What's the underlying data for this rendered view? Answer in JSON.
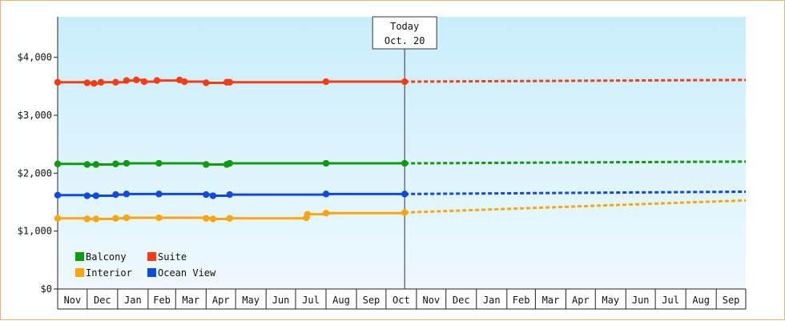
{
  "chart_data": {
    "type": "line",
    "title": "",
    "xlabel": "",
    "ylabel": "",
    "ylim": [
      0,
      4700
    ],
    "y_ticks": [
      {
        "value": 0,
        "label": "$0"
      },
      {
        "value": 1000,
        "label": "$1,000"
      },
      {
        "value": 2000,
        "label": "$2,000"
      },
      {
        "value": 3000,
        "label": "$3,000"
      },
      {
        "value": 4000,
        "label": "$4,000"
      }
    ],
    "x_axis": {
      "months": [
        "Nov",
        "Dec",
        "Jan",
        "Feb",
        "Mar",
        "Apr",
        "May",
        "Jun",
        "Jul",
        "Aug",
        "Sep",
        "Oct",
        "Nov",
        "Dec",
        "Jan",
        "Feb",
        "Mar",
        "Apr",
        "May",
        "Jun",
        "Jul",
        "Aug",
        "Sep"
      ],
      "start": "2014-11-01",
      "end": "2016-10-01"
    },
    "background_gradient": [
      "#c9eefb",
      "#eef9fe"
    ],
    "today": {
      "line1": "Today",
      "line2": "Oct. 20",
      "date": "2015-10-20"
    },
    "legend": {
      "placement": "bottom-left"
    },
    "series": [
      {
        "name": "Suite",
        "color": "#ff3a12",
        "history": [
          [
            "2014-11-01",
            3570
          ],
          [
            "2014-12-01",
            3560
          ],
          [
            "2014-12-08",
            3550
          ],
          [
            "2014-12-15",
            3570
          ],
          [
            "2014-12-30",
            3570
          ],
          [
            "2015-01-10",
            3600
          ],
          [
            "2015-01-20",
            3610
          ],
          [
            "2015-01-28",
            3580
          ],
          [
            "2015-02-10",
            3600
          ],
          [
            "2015-03-05",
            3610
          ],
          [
            "2015-03-10",
            3580
          ],
          [
            "2015-04-01",
            3560
          ],
          [
            "2015-04-22",
            3570
          ],
          [
            "2015-04-25",
            3570
          ],
          [
            "2015-08-01",
            3580
          ],
          [
            "2015-10-20",
            3580
          ]
        ],
        "forecast": [
          [
            "2015-10-20",
            3580
          ],
          [
            "2016-10-01",
            3610
          ]
        ]
      },
      {
        "name": "Balcony",
        "color": "#0e9b0e",
        "history": [
          [
            "2014-11-01",
            2160
          ],
          [
            "2014-12-01",
            2150
          ],
          [
            "2014-12-10",
            2150
          ],
          [
            "2014-12-30",
            2160
          ],
          [
            "2015-01-10",
            2170
          ],
          [
            "2015-02-12",
            2170
          ],
          [
            "2015-04-01",
            2150
          ],
          [
            "2015-04-22",
            2150
          ],
          [
            "2015-04-25",
            2170
          ],
          [
            "2015-08-01",
            2170
          ],
          [
            "2015-10-20",
            2170
          ]
        ],
        "forecast": [
          [
            "2015-10-20",
            2170
          ],
          [
            "2016-10-01",
            2200
          ]
        ]
      },
      {
        "name": "Ocean View",
        "color": "#1148e8",
        "history": [
          [
            "2014-11-01",
            1620
          ],
          [
            "2014-12-01",
            1610
          ],
          [
            "2014-12-10",
            1610
          ],
          [
            "2014-12-30",
            1630
          ],
          [
            "2015-01-10",
            1640
          ],
          [
            "2015-02-12",
            1640
          ],
          [
            "2015-04-01",
            1630
          ],
          [
            "2015-04-08",
            1610
          ],
          [
            "2015-04-25",
            1630
          ],
          [
            "2015-08-01",
            1640
          ],
          [
            "2015-10-20",
            1640
          ]
        ],
        "forecast": [
          [
            "2015-10-20",
            1640
          ],
          [
            "2016-10-01",
            1680
          ]
        ]
      },
      {
        "name": "Interior",
        "color": "#ffa40a",
        "history": [
          [
            "2014-11-01",
            1220
          ],
          [
            "2014-12-01",
            1210
          ],
          [
            "2014-12-10",
            1210
          ],
          [
            "2014-12-30",
            1220
          ],
          [
            "2015-01-10",
            1230
          ],
          [
            "2015-02-12",
            1230
          ],
          [
            "2015-04-01",
            1220
          ],
          [
            "2015-04-08",
            1210
          ],
          [
            "2015-04-25",
            1220
          ],
          [
            "2015-07-12",
            1230
          ],
          [
            "2015-07-13",
            1290
          ],
          [
            "2015-08-01",
            1310
          ],
          [
            "2015-10-20",
            1320
          ]
        ],
        "forecast": [
          [
            "2015-10-20",
            1320
          ],
          [
            "2016-10-01",
            1530
          ]
        ]
      }
    ],
    "legend_items": [
      {
        "name": "Balcony",
        "color": "#0e9b0e"
      },
      {
        "name": "Suite",
        "color": "#ff3a12"
      },
      {
        "name": "Interior",
        "color": "#ffa40a"
      },
      {
        "name": "Ocean View",
        "color": "#1148e8"
      }
    ]
  }
}
